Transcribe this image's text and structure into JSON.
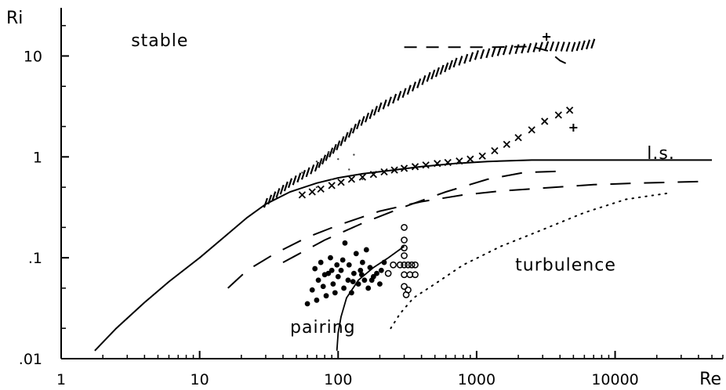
{
  "chart_data": {
    "type": "scatter",
    "title": "",
    "xlabel": "Re",
    "ylabel": "Ri",
    "x_scale": "log",
    "y_scale": "log",
    "xlim": [
      1,
      60000
    ],
    "ylim": [
      0.01,
      30
    ],
    "x_ticks": [
      {
        "value": 1,
        "label": "1"
      },
      {
        "value": 10,
        "label": "10"
      },
      {
        "value": 100,
        "label": "100"
      },
      {
        "value": 1000,
        "label": "1000"
      },
      {
        "value": 10000,
        "label": "10000"
      }
    ],
    "y_ticks": [
      {
        "value": 10,
        "label": "10"
      },
      {
        "value": 1,
        "label": "1"
      },
      {
        "value": 0.1,
        "label": ".1"
      },
      {
        "value": 0.01,
        "label": ".01"
      }
    ],
    "grid": false,
    "annotations": [
      {
        "text": "stable",
        "x": 3.2,
        "y": 12.5
      },
      {
        "text": "turbulence",
        "x": 1900,
        "y": 0.075
      },
      {
        "text": "pairing",
        "x": 45,
        "y": 0.018
      },
      {
        "text": "l.s.",
        "x": 17000,
        "y": 0.95
      }
    ],
    "series": [
      {
        "style": "solid",
        "points": [
          [
            1.75,
            0.012
          ],
          [
            2.5,
            0.02
          ],
          [
            4,
            0.036
          ],
          [
            6,
            0.058
          ],
          [
            10,
            0.1
          ],
          [
            15,
            0.16
          ],
          [
            22,
            0.25
          ],
          [
            30,
            0.34
          ],
          [
            45,
            0.45
          ],
          [
            70,
            0.55
          ],
          [
            100,
            0.62
          ],
          [
            150,
            0.68
          ],
          [
            250,
            0.74
          ],
          [
            400,
            0.8
          ],
          [
            700,
            0.86
          ],
          [
            1200,
            0.9
          ],
          [
            2500,
            0.93
          ],
          [
            5000,
            0.93
          ],
          [
            10000,
            0.93
          ],
          [
            20000,
            0.93
          ],
          [
            50000,
            0.93
          ]
        ]
      },
      {
        "style": "dash-long",
        "points": [
          [
            16,
            0.05
          ],
          [
            22,
            0.075
          ],
          [
            35,
            0.11
          ],
          [
            60,
            0.16
          ],
          [
            100,
            0.21
          ],
          [
            200,
            0.29
          ],
          [
            400,
            0.36
          ],
          [
            800,
            0.42
          ],
          [
            1500,
            0.46
          ],
          [
            3000,
            0.49
          ],
          [
            7000,
            0.53
          ],
          [
            15000,
            0.55
          ],
          [
            40000,
            0.57
          ]
        ]
      },
      {
        "style": "dash-long",
        "points": [
          [
            40,
            0.09
          ],
          [
            80,
            0.15
          ],
          [
            150,
            0.22
          ],
          [
            300,
            0.32
          ],
          [
            600,
            0.45
          ],
          [
            1200,
            0.6
          ],
          [
            2200,
            0.7
          ],
          [
            4000,
            0.72
          ]
        ]
      },
      {
        "style": "dotted",
        "points": [
          [
            240,
            0.02
          ],
          [
            280,
            0.028
          ],
          [
            350,
            0.04
          ],
          [
            500,
            0.055
          ],
          [
            800,
            0.085
          ],
          [
            1500,
            0.13
          ],
          [
            3000,
            0.19
          ],
          [
            6000,
            0.28
          ],
          [
            12000,
            0.38
          ],
          [
            25000,
            0.44
          ]
        ]
      },
      {
        "style": "solid-thin",
        "points": [
          [
            98,
            0.012
          ],
          [
            100,
            0.018
          ],
          [
            105,
            0.026
          ],
          [
            115,
            0.04
          ],
          [
            140,
            0.06
          ],
          [
            180,
            0.08
          ],
          [
            230,
            0.1
          ],
          [
            300,
            0.13
          ]
        ]
      },
      {
        "style": "dash-short",
        "points": [
          [
            300,
            12.2
          ],
          [
            600,
            12.2
          ],
          [
            1200,
            12.2
          ],
          [
            2500,
            12.4
          ],
          [
            3300,
            11.2
          ],
          [
            4000,
            9
          ],
          [
            4800,
            8
          ]
        ]
      },
      {
        "style": "hatched",
        "points": [
          [
            30,
            0.35
          ],
          [
            45,
            0.55
          ],
          [
            70,
            0.8
          ],
          [
            100,
            1.3
          ],
          [
            140,
            2.1
          ],
          [
            200,
            3.1
          ],
          [
            300,
            4.3
          ],
          [
            450,
            6.2
          ],
          [
            700,
            8.6
          ],
          [
            1000,
            10.2
          ],
          [
            1600,
            11.4
          ],
          [
            2400,
            12.0
          ],
          [
            3200,
            12.5
          ],
          [
            5000,
            12.3
          ],
          [
            7500,
            13.5
          ]
        ]
      },
      {
        "style": "crosses",
        "points": [
          [
            55,
            0.42
          ],
          [
            65,
            0.45
          ],
          [
            75,
            0.48
          ],
          [
            90,
            0.52
          ],
          [
            105,
            0.56
          ],
          [
            125,
            0.6
          ],
          [
            150,
            0.63
          ],
          [
            180,
            0.67
          ],
          [
            215,
            0.71
          ],
          [
            255,
            0.74
          ],
          [
            300,
            0.77
          ],
          [
            360,
            0.8
          ],
          [
            430,
            0.83
          ],
          [
            520,
            0.86
          ],
          [
            620,
            0.88
          ],
          [
            750,
            0.91
          ],
          [
            900,
            0.95
          ],
          [
            1100,
            1.02
          ],
          [
            1350,
            1.15
          ],
          [
            1650,
            1.33
          ],
          [
            2000,
            1.55
          ],
          [
            2500,
            1.85
          ],
          [
            3100,
            2.25
          ],
          [
            3900,
            2.6
          ],
          [
            4700,
            2.9
          ]
        ]
      },
      {
        "style": "plus",
        "points": [
          [
            3200,
            15.5
          ],
          [
            5000,
            1.95
          ]
        ]
      },
      {
        "style": "filled-dots",
        "points": [
          [
            60,
            0.035
          ],
          [
            65,
            0.048
          ],
          [
            70,
            0.038
          ],
          [
            72,
            0.06
          ],
          [
            75,
            0.09
          ],
          [
            78,
            0.052
          ],
          [
            82,
            0.042
          ],
          [
            85,
            0.07
          ],
          [
            88,
            0.1
          ],
          [
            92,
            0.055
          ],
          [
            95,
            0.045
          ],
          [
            98,
            0.085
          ],
          [
            100,
            0.065
          ],
          [
            105,
            0.075
          ],
          [
            110,
            0.05
          ],
          [
            112,
            0.14
          ],
          [
            118,
            0.06
          ],
          [
            120,
            0.085
          ],
          [
            125,
            0.045
          ],
          [
            130,
            0.07
          ],
          [
            135,
            0.11
          ],
          [
            140,
            0.055
          ],
          [
            145,
            0.075
          ],
          [
            150,
            0.09
          ],
          [
            155,
            0.06
          ],
          [
            160,
            0.12
          ],
          [
            165,
            0.05
          ],
          [
            170,
            0.08
          ],
          [
            180,
            0.065
          ],
          [
            190,
            0.07
          ],
          [
            200,
            0.055
          ],
          [
            215,
            0.09
          ],
          [
            68,
            0.078
          ],
          [
            80,
            0.068
          ],
          [
            90,
            0.075
          ],
          [
            108,
            0.095
          ],
          [
            128,
            0.058
          ],
          [
            148,
            0.068
          ],
          [
            175,
            0.06
          ],
          [
            205,
            0.075
          ]
        ]
      },
      {
        "style": "open-circles",
        "points": [
          [
            300,
            0.2
          ],
          [
            300,
            0.15
          ],
          [
            300,
            0.125
          ],
          [
            300,
            0.105
          ],
          [
            280,
            0.085
          ],
          [
            300,
            0.085
          ],
          [
            320,
            0.085
          ],
          [
            340,
            0.085
          ],
          [
            360,
            0.085
          ],
          [
            300,
            0.068
          ],
          [
            330,
            0.068
          ],
          [
            360,
            0.068
          ],
          [
            300,
            0.052
          ],
          [
            320,
            0.048
          ],
          [
            310,
            0.043
          ],
          [
            250,
            0.085
          ],
          [
            230,
            0.07
          ]
        ]
      },
      {
        "style": "stipple",
        "points": [
          [
            55,
            0.7
          ],
          [
            70,
            0.9
          ],
          [
            85,
            1.1
          ],
          [
            100,
            0.95
          ],
          [
            120,
            0.75
          ],
          [
            150,
            0.6
          ],
          [
            130,
            1.05
          ],
          [
            90,
            0.6
          ],
          [
            70,
            0.5
          ]
        ]
      }
    ]
  }
}
